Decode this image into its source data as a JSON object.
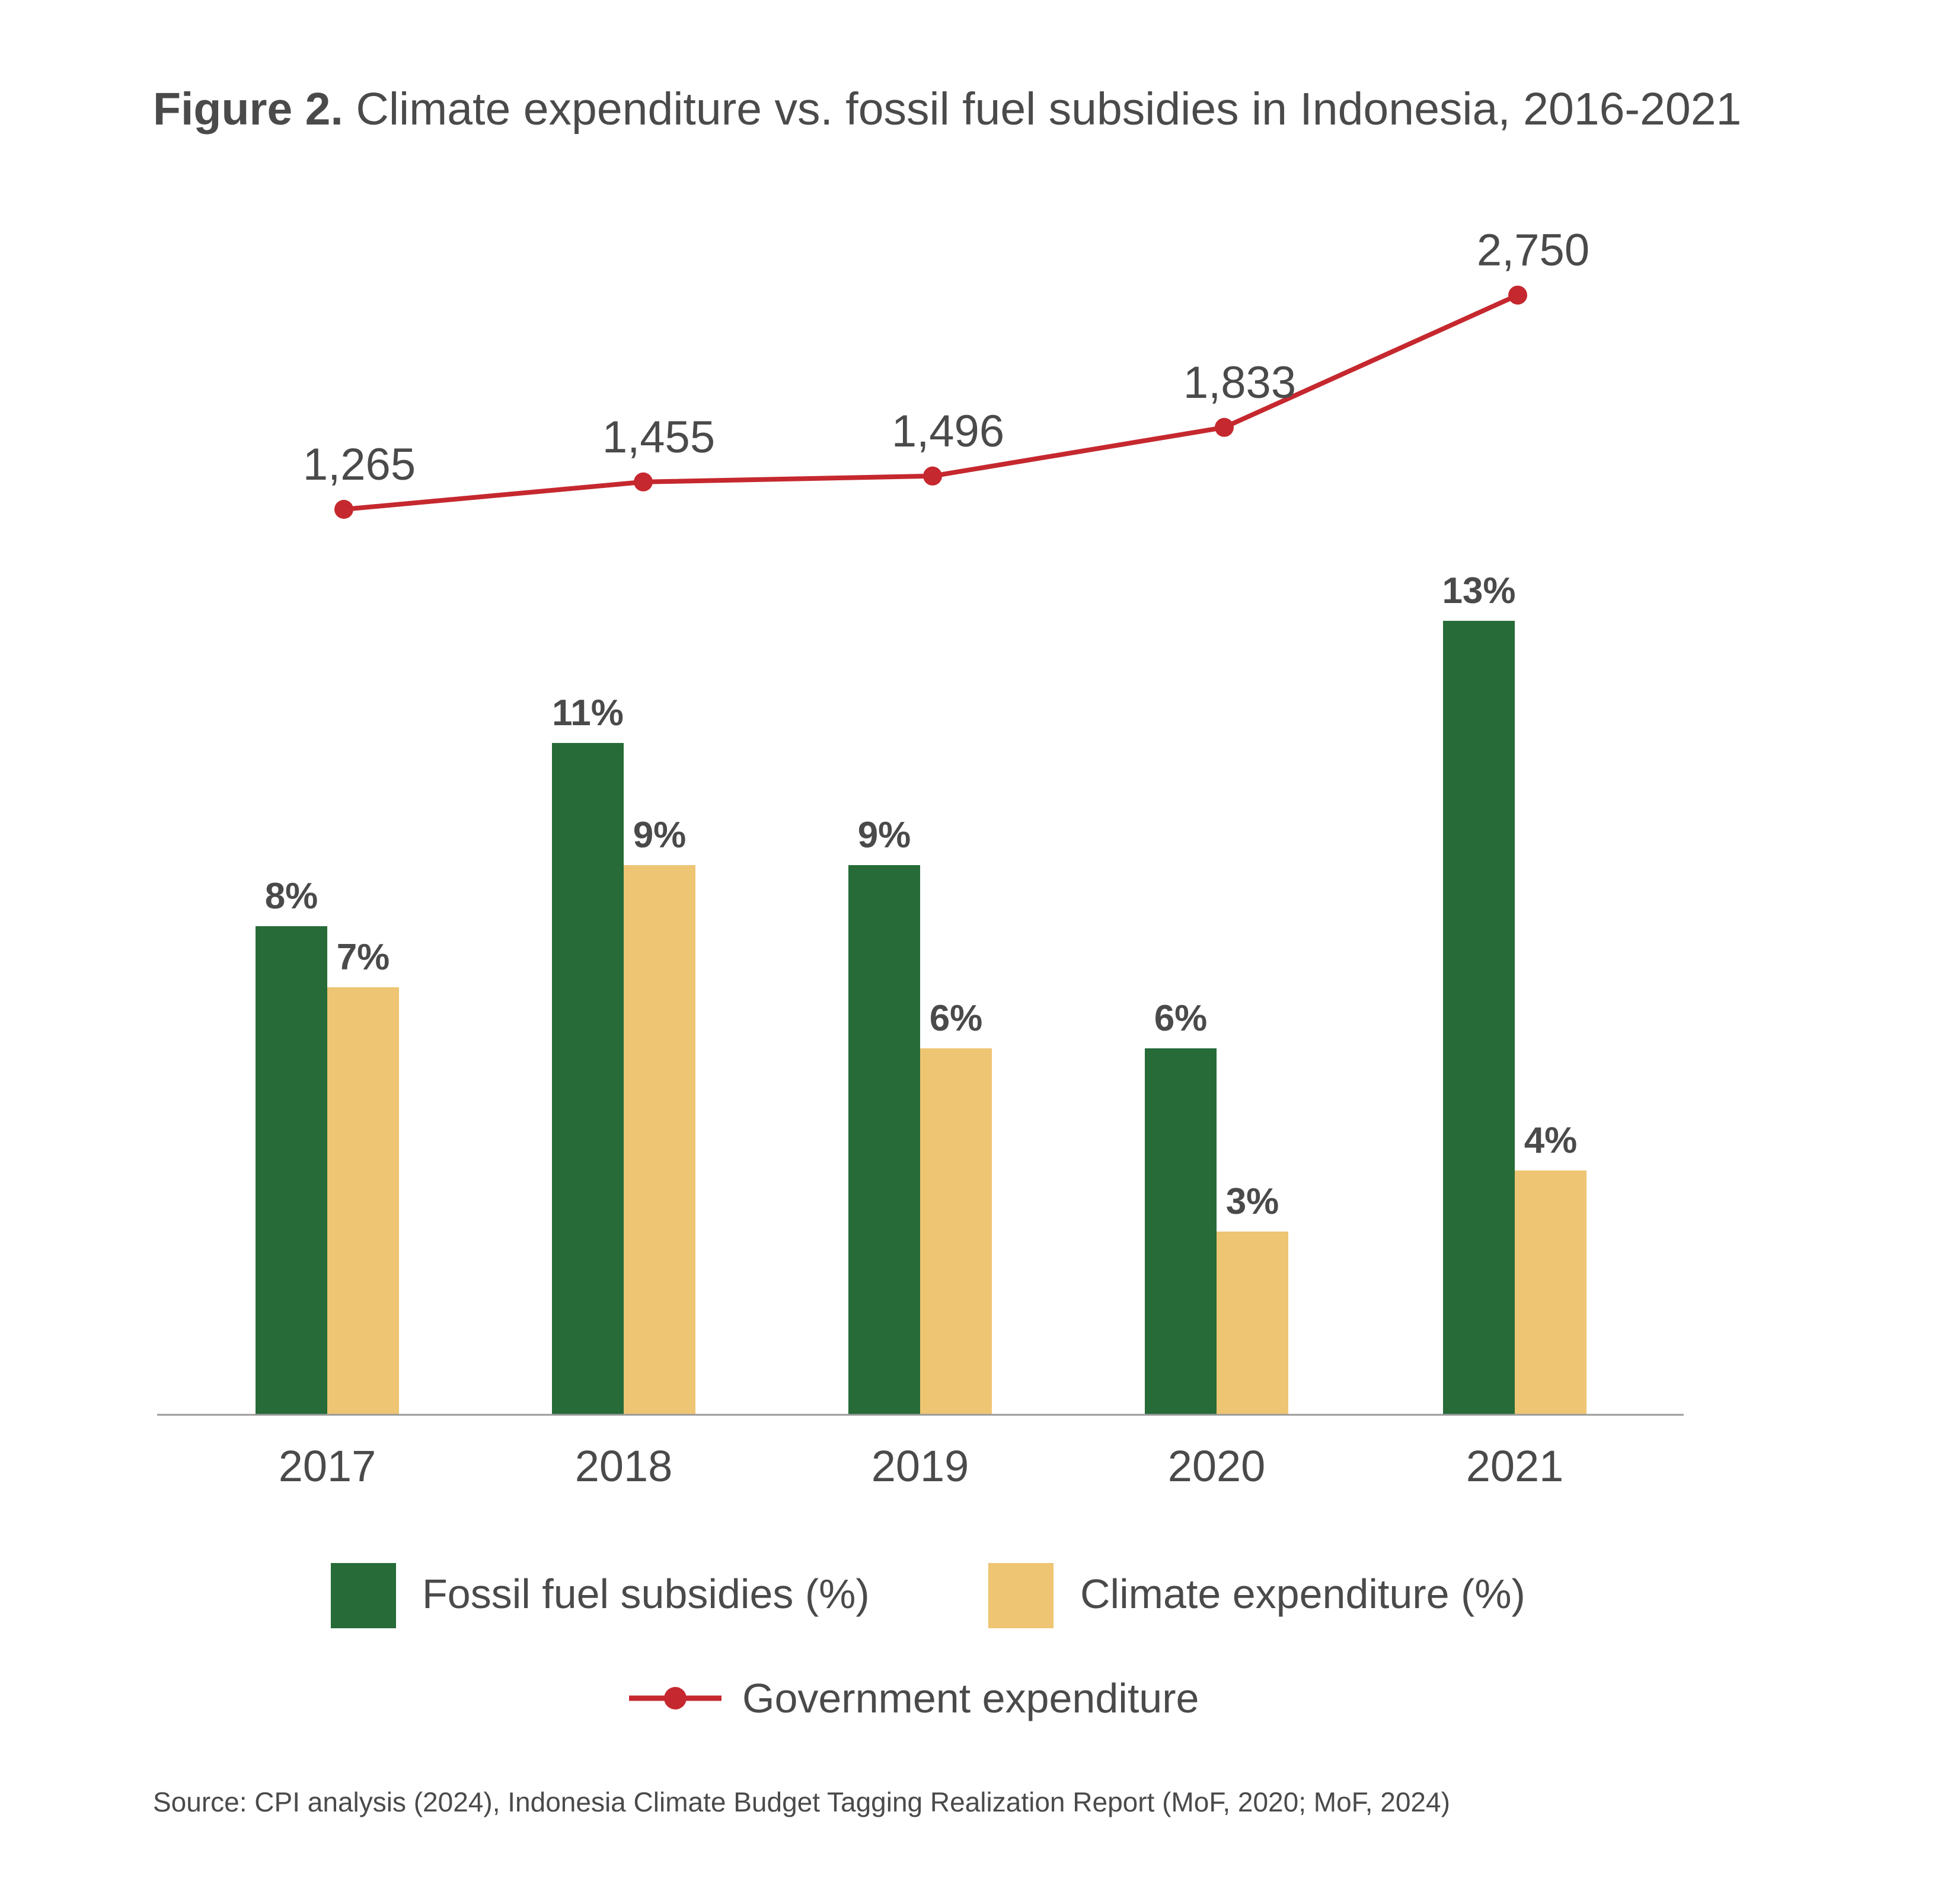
{
  "figure": {
    "label": "Figure 2.",
    "title": "Climate expenditure vs. fossil fuel subsidies in Indonesia, 2016-2021"
  },
  "source": "Source: CPI analysis (2024), Indonesia Climate Budget Tagging Realization Report (MoF, 2020; MoF, 2024)",
  "colors": {
    "fossil": "#266b38",
    "climate": "#eec573",
    "gov": "#c5282e",
    "axis": "#9a9a9a",
    "text": "#4a4a4a"
  },
  "chart_data": {
    "type": "bar",
    "categories": [
      "2017",
      "2018",
      "2019",
      "2020",
      "2021"
    ],
    "series": [
      {
        "name": "Fossil fuel subsidies (%)",
        "values": [
          8,
          11,
          9,
          6,
          13
        ],
        "labels": [
          "8%",
          "11%",
          "9%",
          "6%",
          "13%"
        ]
      },
      {
        "name": "Climate expenditure (%)",
        "values": [
          7,
          9,
          6,
          3,
          4
        ],
        "labels": [
          "7%",
          "9%",
          "6%",
          "3%",
          "4%"
        ]
      }
    ],
    "line_series": {
      "name": "Government expenditure",
      "values": [
        1265,
        1455,
        1496,
        1833,
        2750
      ],
      "labels": [
        "1,265",
        "1,455",
        "1,496",
        "1,833",
        "2,750"
      ]
    },
    "legend_position": "bottom",
    "grid": false
  }
}
